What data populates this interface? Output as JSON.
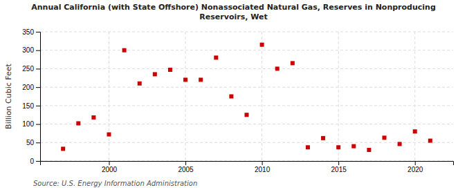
{
  "chart_data": {
    "type": "scatter",
    "title": "Annual California (with State Offshore) Nonassociated Natural Gas, Reserves in Nonproducing\nReservoirs, Wet",
    "y_label": "Billion Cubic Feet",
    "source": "Source: U.S. Energy Information Administration",
    "x": [
      1997,
      1998,
      1999,
      2000,
      2001,
      2002,
      2003,
      2004,
      2005,
      2006,
      2007,
      2008,
      2009,
      2010,
      2011,
      2012,
      2013,
      2014,
      2015,
      2016,
      2017,
      2018,
      2019,
      2020,
      2021
    ],
    "values": [
      33,
      102,
      118,
      72,
      300,
      210,
      235,
      247,
      220,
      220,
      280,
      175,
      125,
      315,
      250,
      265,
      37,
      62,
      37,
      40,
      30,
      63,
      46,
      80,
      55
    ],
    "color": "#cc0000",
    "marker": "square",
    "xlim": [
      1995.5,
      2022.5
    ],
    "xticks": [
      2000,
      2005,
      2010,
      2015,
      2020
    ],
    "ylim": [
      0,
      350
    ],
    "yticks": [
      0,
      50,
      100,
      150,
      200,
      250,
      300,
      350
    ],
    "grid": true
  }
}
